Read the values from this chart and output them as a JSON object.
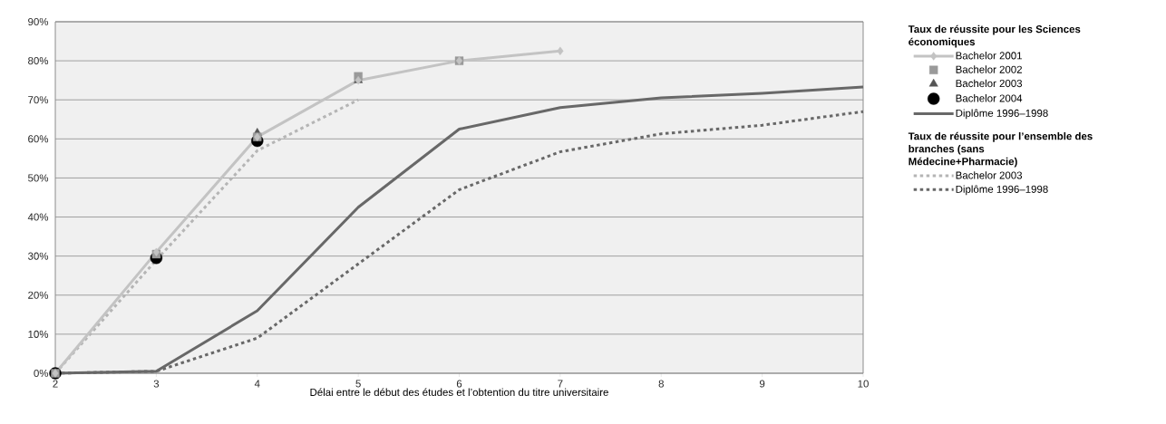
{
  "chart_data": {
    "type": "line",
    "xlabel": "Délai entre le début des études et l’obtention du titre universitaire",
    "legend_title": "Taux de réussite pour les Sciences économiques",
    "annotations": [
      "Taux de réussite pour l’ensemble des branches (sans Médecine+Pharmacie)"
    ],
    "x": [
      2,
      3,
      4,
      5,
      6,
      7,
      8,
      9,
      10
    ],
    "xlim": [
      2,
      10
    ],
    "xticks": [
      2,
      3,
      4,
      5,
      6,
      7,
      8,
      9,
      10
    ],
    "ylim": [
      0,
      90
    ],
    "yticks": [
      {
        "value": 0,
        "label": "0%"
      },
      {
        "value": 10,
        "label": "10%"
      },
      {
        "value": 20,
        "label": "20%"
      },
      {
        "value": 30,
        "label": "30%"
      },
      {
        "value": 40,
        "label": "40%"
      },
      {
        "value": 50,
        "label": "50%"
      },
      {
        "value": 60,
        "label": "60%"
      },
      {
        "value": 70,
        "label": "70%"
      },
      {
        "value": 80,
        "label": "80%"
      },
      {
        "value": 90,
        "label": "90%"
      }
    ],
    "grid": "y",
    "legend": "right",
    "series": [
      {
        "name": "Bachelor 2001",
        "color": "#c3c3c3",
        "marker": "diamond",
        "line_style": "solid",
        "x": [
          2,
          3,
          4,
          5,
          6,
          7
        ],
        "values": [
          0,
          31,
          60.5,
          75,
          80,
          82.5
        ]
      },
      {
        "name": "Bachelor 2002",
        "type": "scatter",
        "color": "#9a9a9a",
        "marker": "square",
        "x": [
          2,
          3,
          4,
          5,
          6
        ],
        "values": [
          0,
          30.5,
          60.5,
          76,
          80
        ]
      },
      {
        "name": "Bachelor 2003",
        "type": "scatter",
        "color": "#555555",
        "marker": "triangle",
        "x": [
          2,
          3,
          4,
          5
        ],
        "values": [
          0,
          null,
          61.5,
          75
        ]
      },
      {
        "name": "Bachelor 2004",
        "type": "scatter",
        "color": "#000000",
        "marker": "circle",
        "x": [
          2,
          3,
          4
        ],
        "values": [
          0,
          29.5,
          59.5
        ]
      },
      {
        "name": "Diplôme 1996–1998",
        "color": "#686868",
        "marker": "none",
        "line_style": "solid",
        "values": [
          0,
          0.5,
          16,
          42.5,
          62.5,
          68,
          70.5,
          71.7,
          73.3
        ]
      },
      {
        "name": "Bachelor 2003",
        "color": "#b5b5b5",
        "marker": "none",
        "line_style": "dotted",
        "x": [
          2,
          3,
          4,
          5
        ],
        "values": [
          0,
          29,
          57,
          70
        ]
      },
      {
        "name": "Diplôme 1996–1998",
        "color": "#686868",
        "marker": "none",
        "line_style": "dotted",
        "values": [
          0,
          0.5,
          9,
          28,
          47,
          56.7,
          61.3,
          63.5,
          67
        ]
      }
    ]
  }
}
